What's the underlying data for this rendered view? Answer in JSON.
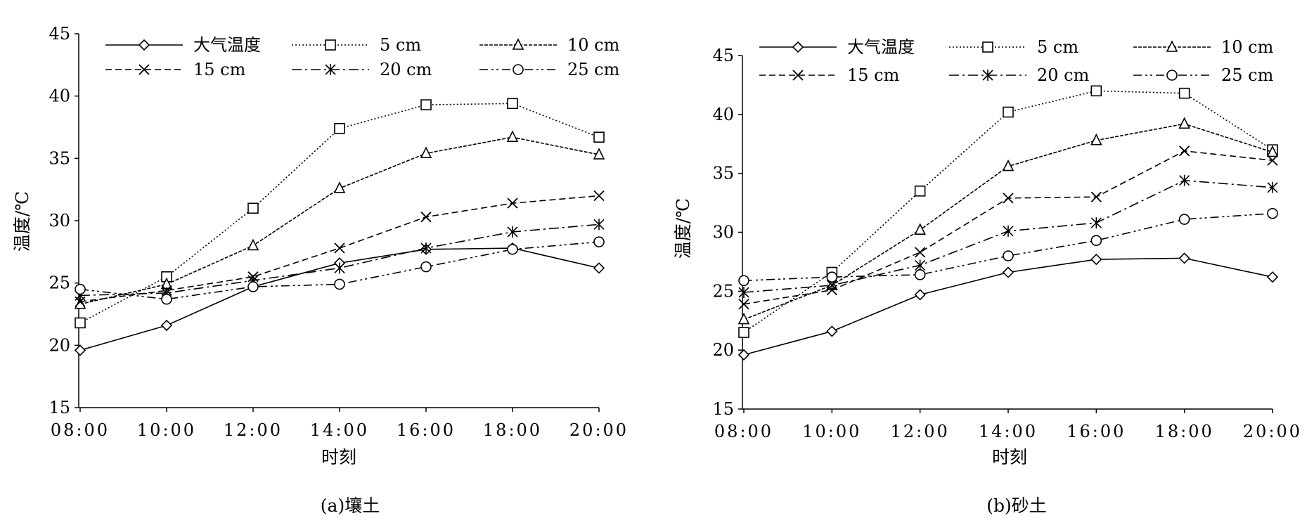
{
  "colors": {
    "line": "#000000",
    "background": "#ffffff"
  },
  "chart_data": [
    {
      "type": "line",
      "caption": "(a)壤土",
      "xlabel": "时刻",
      "ylabel": "温度/℃",
      "categories": [
        "08:00",
        "10:00",
        "12:00",
        "14:00",
        "16:00",
        "18:00",
        "20:00"
      ],
      "ylim": [
        15,
        45
      ],
      "yticks": [
        15,
        20,
        25,
        30,
        35,
        40,
        45
      ],
      "grid": false,
      "legend_position": "top",
      "series": [
        {
          "name": "大气温度",
          "marker": "diamond",
          "dash": "solid",
          "values": [
            19.6,
            21.6,
            24.7,
            26.6,
            27.7,
            27.8,
            26.2
          ]
        },
        {
          "name": "5 cm",
          "marker": "square",
          "dash": "dotted",
          "values": [
            21.8,
            25.5,
            31.0,
            37.4,
            39.3,
            39.4,
            36.7
          ]
        },
        {
          "name": "10 cm",
          "marker": "triangle",
          "dash": "short-dash",
          "values": [
            23.3,
            24.9,
            28.0,
            32.6,
            35.4,
            36.7,
            35.3
          ]
        },
        {
          "name": "15 cm",
          "marker": "x",
          "dash": "dash",
          "values": [
            23.5,
            24.4,
            25.5,
            27.8,
            30.3,
            31.4,
            32.0
          ]
        },
        {
          "name": "20 cm",
          "marker": "asterisk",
          "dash": "dash-dot",
          "values": [
            24.0,
            24.2,
            25.2,
            26.2,
            27.8,
            29.1,
            29.7
          ]
        },
        {
          "name": "25 cm",
          "marker": "circle",
          "dash": "dash-dot-dot",
          "values": [
            24.5,
            23.7,
            24.7,
            24.9,
            26.3,
            27.7,
            28.3
          ]
        }
      ]
    },
    {
      "type": "line",
      "caption": "(b)砂土",
      "xlabel": "时刻",
      "ylabel": "温度/℃",
      "categories": [
        "08:00",
        "10:00",
        "12:00",
        "14:00",
        "16:00",
        "18:00",
        "20:00"
      ],
      "ylim": [
        15,
        45
      ],
      "yticks": [
        15,
        20,
        25,
        30,
        35,
        40,
        45
      ],
      "grid": false,
      "legend_position": "top",
      "series": [
        {
          "name": "大气温度",
          "marker": "diamond",
          "dash": "solid",
          "values": [
            19.6,
            21.6,
            24.7,
            26.6,
            27.7,
            27.8,
            26.2
          ]
        },
        {
          "name": "5 cm",
          "marker": "square",
          "dash": "dotted",
          "values": [
            21.5,
            26.6,
            33.5,
            40.2,
            42.0,
            41.8,
            37.0
          ]
        },
        {
          "name": "10 cm",
          "marker": "triangle",
          "dash": "short-dash",
          "values": [
            22.6,
            25.5,
            30.2,
            35.6,
            37.8,
            39.2,
            36.8
          ]
        },
        {
          "name": "15 cm",
          "marker": "x",
          "dash": "dash",
          "values": [
            23.9,
            25.1,
            28.3,
            32.9,
            33.0,
            36.9,
            36.1
          ]
        },
        {
          "name": "20 cm",
          "marker": "asterisk",
          "dash": "dash-dot",
          "values": [
            24.9,
            25.5,
            27.2,
            30.1,
            30.8,
            34.4,
            33.8
          ]
        },
        {
          "name": "25 cm",
          "marker": "circle",
          "dash": "dash-dot-dot",
          "values": [
            25.9,
            26.2,
            26.4,
            28.0,
            29.3,
            31.1,
            31.6
          ]
        }
      ]
    }
  ]
}
